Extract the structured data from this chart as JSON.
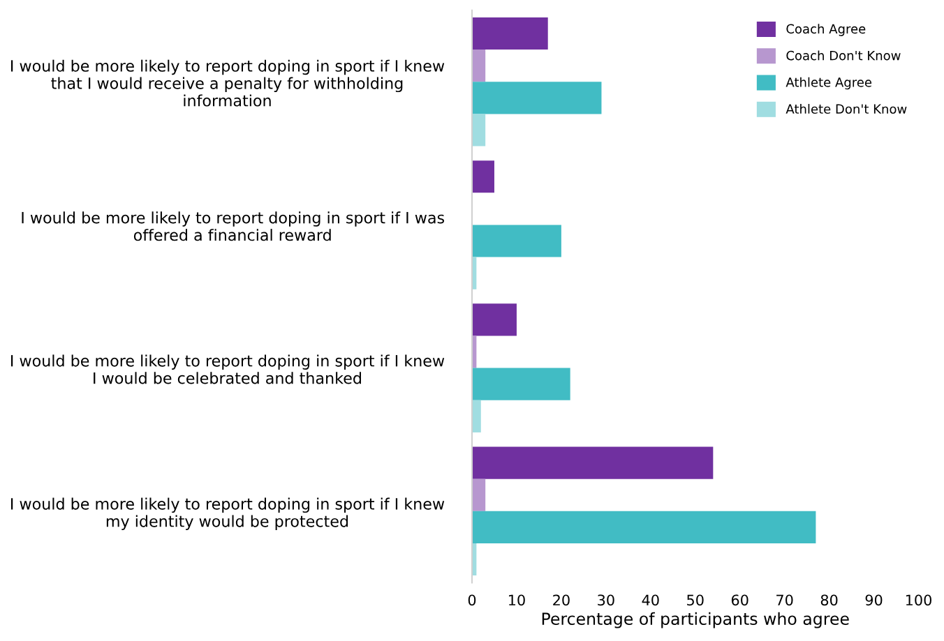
{
  "chart_data": {
    "type": "bar",
    "orientation": "horizontal",
    "categories": [
      "I would be more likely to report doping in sport if I knew\nthat I would receive a penalty for withholding\ninformation",
      "I would be more likely to report doping in sport if I was\noffered a financial reward",
      "I would be more likely to report doping in sport if I knew\nI would be celebrated and thanked",
      "I would be more likely to report doping in sport if I knew\nmy identity would be protected"
    ],
    "series": [
      {
        "name": "Coach Agree",
        "color": "#7030a0",
        "values": [
          17,
          5,
          10,
          54
        ]
      },
      {
        "name": "Coach Don't Know",
        "color": "#b797cf",
        "values": [
          3,
          0,
          1,
          3
        ]
      },
      {
        "name": "Athlete Agree",
        "color": "#41bcc4",
        "values": [
          29,
          20,
          22,
          77
        ]
      },
      {
        "name": "Athlete Don't Know",
        "color": "#a0dde1",
        "values": [
          3,
          1,
          2,
          1
        ]
      }
    ],
    "xlabel": "Percentage of participants who agree",
    "xlim": [
      0,
      100
    ],
    "xticks": [
      0,
      10,
      20,
      30,
      40,
      50,
      60,
      70,
      80,
      90,
      100
    ],
    "grid": false,
    "legend": "top right"
  }
}
